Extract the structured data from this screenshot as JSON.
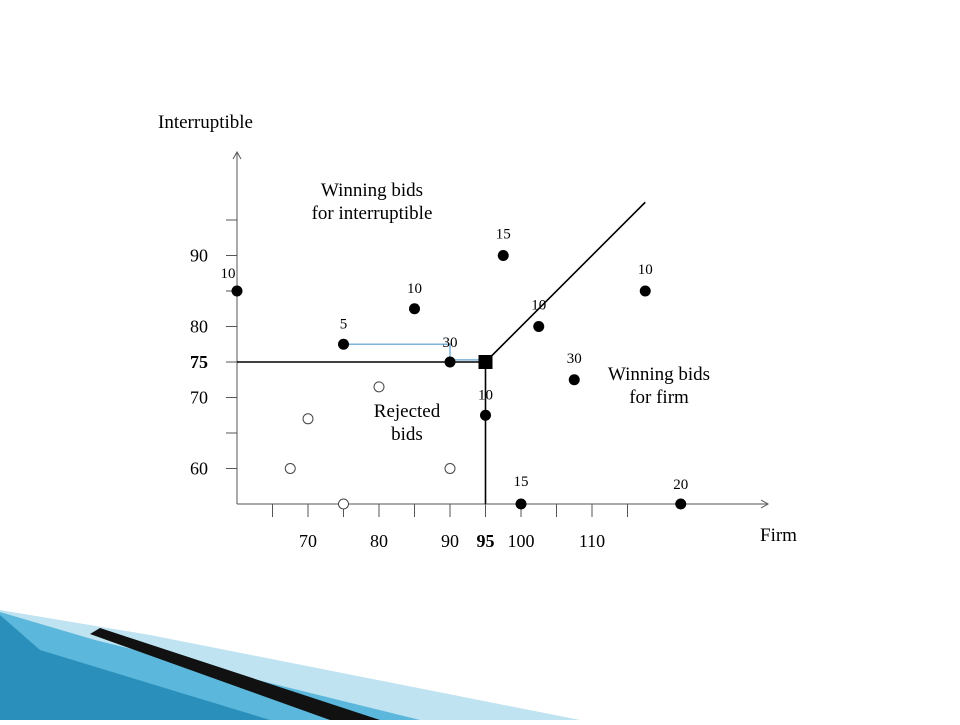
{
  "chart_data": {
    "type": "scatter",
    "title": "",
    "xlabel": "Firm",
    "ylabel": "Interruptible",
    "xlim": [
      60,
      120
    ],
    "ylim": [
      55,
      100
    ],
    "x_ticks": [
      65,
      70,
      75,
      80,
      85,
      90,
      95,
      100,
      105,
      110,
      115
    ],
    "x_tick_labels": [
      {
        "value": 70,
        "label": "70",
        "bold": false
      },
      {
        "value": 80,
        "label": "80",
        "bold": false
      },
      {
        "value": 90,
        "label": "90",
        "bold": false
      },
      {
        "value": 95,
        "label": "95",
        "bold": true
      },
      {
        "value": 100,
        "label": "100",
        "bold": false
      },
      {
        "value": 110,
        "label": "110",
        "bold": false
      }
    ],
    "y_ticks": [
      60,
      65,
      70,
      75,
      80,
      85,
      90,
      95
    ],
    "y_tick_labels": [
      {
        "value": 60,
        "label": "60",
        "bold": false
      },
      {
        "value": 70,
        "label": "70",
        "bold": false
      },
      {
        "value": 75,
        "label": "75",
        "bold": true
      },
      {
        "value": 80,
        "label": "80",
        "bold": false
      },
      {
        "value": 90,
        "label": "90",
        "bold": false
      }
    ],
    "clearing_point": {
      "x": 95,
      "y": 75
    },
    "boundary_lines": [
      {
        "name": "interruptible-boundary",
        "points": [
          [
            60,
            75
          ],
          [
            95,
            75
          ]
        ]
      },
      {
        "name": "firm-boundary",
        "points": [
          [
            95,
            55
          ],
          [
            95,
            75
          ]
        ]
      },
      {
        "name": "diagonal-boundary",
        "points": [
          [
            95,
            75
          ],
          [
            117.5,
            97.5
          ]
        ]
      }
    ],
    "winning_bids": [
      {
        "x": 60,
        "y": 85,
        "label": "10"
      },
      {
        "x": 75,
        "y": 77.5,
        "label": "5"
      },
      {
        "x": 85,
        "y": 82.5,
        "label": "10"
      },
      {
        "x": 90,
        "y": 75,
        "label": "30"
      },
      {
        "x": 97.5,
        "y": 90,
        "label": "15"
      },
      {
        "x": 102.5,
        "y": 80,
        "label": "10"
      },
      {
        "x": 107.5,
        "y": 72.5,
        "label": "30"
      },
      {
        "x": 117.5,
        "y": 85,
        "label": "10"
      },
      {
        "x": 95,
        "y": 67.5,
        "label": "10"
      },
      {
        "x": 100,
        "y": 55,
        "label": "15"
      },
      {
        "x": 122.5,
        "y": 55,
        "label": "20"
      }
    ],
    "rejected_bids": [
      {
        "x": 80,
        "y": 71.5
      },
      {
        "x": 70,
        "y": 67
      },
      {
        "x": 67.5,
        "y": 60
      },
      {
        "x": 90,
        "y": 60
      },
      {
        "x": 75,
        "y": 55
      }
    ],
    "annotations": [
      {
        "name": "winning-interruptible-label",
        "lines": [
          "Winning bids",
          "for interruptible"
        ]
      },
      {
        "name": "winning-firm-label",
        "lines": [
          "Winning bids",
          "for firm"
        ]
      },
      {
        "name": "rejected-label",
        "lines": [
          "Rejected",
          "bids"
        ]
      }
    ],
    "colors": {
      "ink": "#000000",
      "highlight": "#7fb2d9"
    }
  },
  "decor": {
    "ribbon_colors": [
      "#0e5d80",
      "#2a8fba",
      "#5bb8dc",
      "#bfe3f1"
    ]
  }
}
